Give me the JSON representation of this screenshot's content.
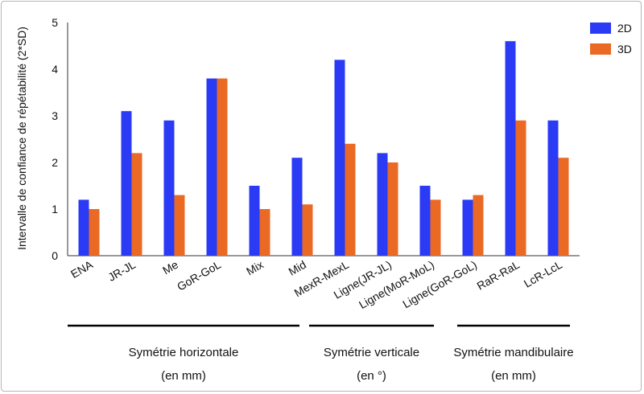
{
  "chart_data": {
    "type": "bar",
    "ylabel": "Intervalle de confiance de répétabilité (2*SD)",
    "ylim": [
      0,
      5
    ],
    "yticks": [
      "0",
      "1",
      "2",
      "3",
      "4",
      "5"
    ],
    "categories": [
      "ENA",
      "JR-JL",
      "Me",
      "GoR-GoL",
      "Mix",
      "Mid",
      "MexR-MexL",
      "Ligne(JR-JL)",
      "Ligne(MoR-MoL)",
      "Ligne(GoR-GoL)",
      "RaR-RaL",
      "LcR-LcL"
    ],
    "series": [
      {
        "name": "2D",
        "color": "#2b3bf5",
        "values": [
          1.2,
          3.1,
          2.9,
          3.8,
          1.5,
          2.1,
          4.2,
          2.2,
          1.5,
          1.2,
          4.6,
          2.9
        ]
      },
      {
        "name": "3D",
        "color": "#ea6a25",
        "values": [
          1.0,
          2.2,
          1.3,
          3.8,
          1.0,
          1.1,
          2.4,
          2.0,
          1.2,
          1.3,
          2.9,
          2.1
        ]
      }
    ],
    "legend_position": "top-right",
    "grid": false,
    "groups": [
      {
        "label_line1": "Symétrie horizontale",
        "label_line2": "(en mm)",
        "from": 0,
        "to": 5
      },
      {
        "label_line1": "Symétrie verticale",
        "label_line2": "(en °)",
        "from": 6,
        "to": 8
      },
      {
        "label_line1": "Symétrie mandibulaire",
        "label_line2": "(en mm)",
        "from": 9,
        "to": 11
      }
    ]
  }
}
